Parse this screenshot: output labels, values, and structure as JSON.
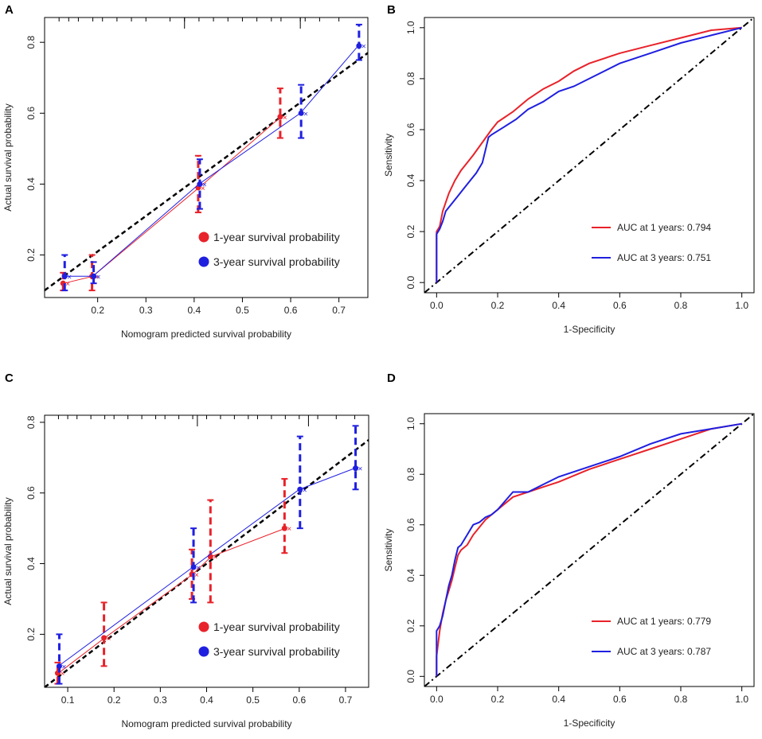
{
  "chart_data": [
    {
      "panel": "A",
      "type": "line",
      "subtype": "calibration",
      "xlabel": "Nomogram predicted survival probability",
      "ylabel": "Actual survival probability",
      "xlim": [
        0.09,
        0.76
      ],
      "ylim": [
        0.08,
        0.87
      ],
      "xticks": [
        0.2,
        0.3,
        0.4,
        0.5,
        0.6,
        0.7
      ],
      "yticks": [
        0.2,
        0.4,
        0.6,
        0.8
      ],
      "reference_line": {
        "from": [
          0.09,
          0.1
        ],
        "to": [
          0.76,
          0.77
        ]
      },
      "rug_ticks": [
        0.12,
        0.14,
        0.16,
        0.19,
        0.21,
        0.24,
        0.27,
        0.3,
        0.35,
        0.38,
        0.41,
        0.44,
        0.47,
        0.5,
        0.53,
        0.56,
        0.58,
        0.62,
        0.63,
        0.66,
        0.7
      ],
      "series": [
        {
          "name": "1-year survival probability",
          "color": "#e8222a",
          "x": [
            0.13,
            0.19,
            0.41,
            0.58
          ],
          "y": [
            0.12,
            0.14,
            0.39,
            0.59
          ],
          "lo": [
            0.1,
            0.1,
            0.32,
            0.53
          ],
          "hi": [
            0.15,
            0.2,
            0.48,
            0.67
          ]
        },
        {
          "name": "3-year survival probability",
          "color": "#1f1fe0",
          "x": [
            0.13,
            0.19,
            0.41,
            0.62,
            0.74
          ],
          "y": [
            0.14,
            0.14,
            0.4,
            0.6,
            0.79
          ],
          "lo": [
            0.1,
            0.12,
            0.33,
            0.53,
            0.75
          ],
          "hi": [
            0.2,
            0.18,
            0.47,
            0.68,
            0.85
          ]
        }
      ],
      "legend": [
        "1-year survival probability",
        "3-year survival probability"
      ]
    },
    {
      "panel": "B",
      "type": "line",
      "subtype": "roc",
      "xlabel": "1-Specificity",
      "ylabel": "Sensitivity",
      "xlim": [
        -0.04,
        1.04
      ],
      "ylim": [
        -0.04,
        1.04
      ],
      "xticks": [
        0.0,
        0.2,
        0.4,
        0.6,
        0.8,
        1.0
      ],
      "yticks": [
        0.0,
        0.2,
        0.4,
        0.6,
        0.8,
        1.0
      ],
      "series": [
        {
          "name": "AUC at 1 years: 0.794",
          "color": "#e8222a",
          "x": [
            0,
            0,
            0.01,
            0.02,
            0.04,
            0.06,
            0.08,
            0.1,
            0.12,
            0.15,
            0.18,
            0.2,
            0.25,
            0.3,
            0.35,
            0.4,
            0.45,
            0.5,
            0.6,
            0.7,
            0.8,
            0.9,
            1.0
          ],
          "y": [
            0,
            0.2,
            0.22,
            0.28,
            0.35,
            0.4,
            0.44,
            0.47,
            0.5,
            0.55,
            0.6,
            0.63,
            0.67,
            0.72,
            0.76,
            0.79,
            0.83,
            0.86,
            0.9,
            0.93,
            0.96,
            0.99,
            1.0
          ]
        },
        {
          "name": "AUC at 3 years: 0.751",
          "color": "#1f1fe0",
          "x": [
            0,
            0,
            0.01,
            0.02,
            0.03,
            0.05,
            0.07,
            0.09,
            0.11,
            0.13,
            0.15,
            0.16,
            0.17,
            0.18,
            0.22,
            0.26,
            0.3,
            0.35,
            0.4,
            0.45,
            0.5,
            0.6,
            0.7,
            0.8,
            0.9,
            1.0
          ],
          "y": [
            0,
            0.19,
            0.21,
            0.24,
            0.28,
            0.31,
            0.34,
            0.37,
            0.4,
            0.43,
            0.47,
            0.52,
            0.57,
            0.58,
            0.61,
            0.64,
            0.68,
            0.71,
            0.75,
            0.77,
            0.8,
            0.86,
            0.9,
            0.94,
            0.97,
            1.0
          ]
        }
      ],
      "legend": [
        "AUC at 1 years: 0.794",
        "AUC at 3 years: 0.751"
      ]
    },
    {
      "panel": "C",
      "type": "line",
      "subtype": "calibration",
      "xlabel": "Nomogram predicted survival probability",
      "ylabel": "Actual survival probability",
      "xlim": [
        0.05,
        0.75
      ],
      "ylim": [
        0.05,
        0.82
      ],
      "xticks": [
        0.1,
        0.2,
        0.3,
        0.4,
        0.5,
        0.6,
        0.7
      ],
      "yticks": [
        0.2,
        0.4,
        0.6,
        0.8
      ],
      "reference_line": {
        "from": [
          0.05,
          0.05
        ],
        "to": [
          0.75,
          0.75
        ]
      },
      "rug_ticks": [
        0.08,
        0.1,
        0.12,
        0.15,
        0.18,
        0.2,
        0.23,
        0.26,
        0.29,
        0.31,
        0.34,
        0.37,
        0.4,
        0.43,
        0.46,
        0.49,
        0.51,
        0.54,
        0.57,
        0.6,
        0.64,
        0.68,
        0.72
      ],
      "series": [
        {
          "name": "1-year survival probability",
          "color": "#e8222a",
          "x": [
            0.08,
            0.18,
            0.37,
            0.41,
            0.57
          ],
          "y": [
            0.09,
            0.19,
            0.37,
            0.42,
            0.5
          ],
          "lo": [
            0.06,
            0.11,
            0.3,
            0.29,
            0.43
          ],
          "hi": [
            0.12,
            0.29,
            0.44,
            0.58,
            0.64
          ]
        },
        {
          "name": "3-year survival probability",
          "color": "#1f1fe0",
          "x": [
            0.08,
            0.37,
            0.6,
            0.72
          ],
          "y": [
            0.11,
            0.39,
            0.61,
            0.67
          ],
          "lo": [
            0.06,
            0.29,
            0.5,
            0.61
          ],
          "hi": [
            0.2,
            0.5,
            0.76,
            0.79
          ]
        }
      ],
      "legend": [
        "1-year survival probability",
        "3-year survival probability"
      ]
    },
    {
      "panel": "D",
      "type": "line",
      "subtype": "roc",
      "xlabel": "1-Specificity",
      "ylabel": "Sensitivity",
      "xlim": [
        -0.04,
        1.04
      ],
      "ylim": [
        -0.04,
        1.04
      ],
      "xticks": [
        0.0,
        0.2,
        0.4,
        0.6,
        0.8,
        1.0
      ],
      "yticks": [
        0.0,
        0.2,
        0.4,
        0.6,
        0.8,
        1.0
      ],
      "series": [
        {
          "name": "AUC at 1 years: 0.779",
          "color": "#e8222a",
          "x": [
            0,
            0,
            0.01,
            0.02,
            0.03,
            0.04,
            0.05,
            0.06,
            0.07,
            0.08,
            0.1,
            0.12,
            0.14,
            0.16,
            0.18,
            0.2,
            0.25,
            0.3,
            0.35,
            0.4,
            0.5,
            0.6,
            0.7,
            0.8,
            0.9,
            1.0
          ],
          "y": [
            0,
            0.08,
            0.18,
            0.25,
            0.3,
            0.34,
            0.38,
            0.43,
            0.48,
            0.5,
            0.52,
            0.56,
            0.59,
            0.62,
            0.64,
            0.66,
            0.71,
            0.73,
            0.75,
            0.77,
            0.82,
            0.86,
            0.9,
            0.94,
            0.98,
            1.0
          ]
        },
        {
          "name": "AUC at 3 years: 0.787",
          "color": "#1f1fe0",
          "x": [
            0,
            0,
            0.01,
            0.02,
            0.03,
            0.04,
            0.05,
            0.06,
            0.07,
            0.08,
            0.1,
            0.12,
            0.14,
            0.16,
            0.18,
            0.2,
            0.25,
            0.3,
            0.35,
            0.4,
            0.5,
            0.6,
            0.7,
            0.8,
            0.9,
            1.0
          ],
          "y": [
            0,
            0.18,
            0.2,
            0.24,
            0.3,
            0.36,
            0.4,
            0.46,
            0.51,
            0.52,
            0.56,
            0.6,
            0.61,
            0.63,
            0.64,
            0.66,
            0.73,
            0.73,
            0.76,
            0.79,
            0.83,
            0.87,
            0.92,
            0.96,
            0.98,
            1.0
          ]
        }
      ],
      "legend": [
        "AUC at 1 years: 0.779",
        "AUC at 3 years: 0.787"
      ]
    }
  ]
}
